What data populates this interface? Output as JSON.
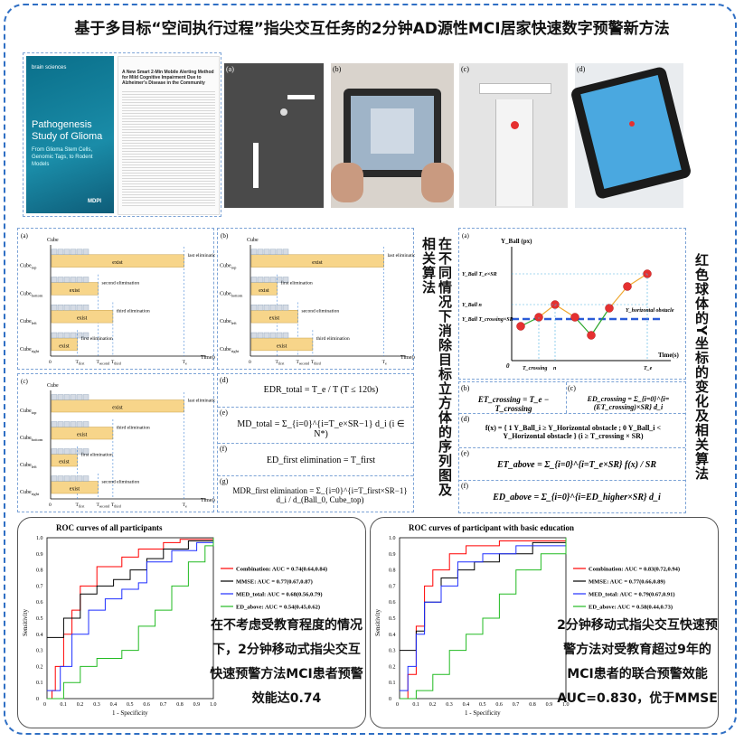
{
  "title": "基于多目标“空间执行过程”指尖交互任务的2分钟AD源性MCI居家快速数字预警新方法",
  "cover": {
    "journal": "brain sciences",
    "book_title": "Pathogenesis Study of Glioma",
    "book_subtitle": "From Glioma Stem Cells, Genomic Tags, to Rodent Models",
    "publisher": "MDPI",
    "article_title": "A New Smart 2-Min Mobile Alerting Method for Mild Cognitive Impairment Due to Alzheimer's Disease in the Community"
  },
  "photo_labels": [
    "(a)",
    "(b)",
    "(c)",
    "(d)"
  ],
  "sequence_panels": [
    {
      "label": "(a)",
      "y_axis": "Cube",
      "x_axis": "Time(s)",
      "rows": [
        {
          "name": "Cube",
          "sub": "top",
          "bar": "exist",
          "event": "last elimination"
        },
        {
          "name": "Cube",
          "sub": "bottom",
          "bar": "exist",
          "event": "second elimination"
        },
        {
          "name": "Cube",
          "sub": "left",
          "bar": "exist",
          "event": "third elimination"
        },
        {
          "name": "Cube",
          "sub": "right",
          "bar": "exist",
          "event": "first elimination"
        }
      ],
      "ticks": [
        "0",
        "T",
        "T",
        "T",
        "T"
      ],
      "tick_subs": [
        "",
        "first",
        "second",
        "third",
        "e"
      ]
    },
    {
      "label": "(b)",
      "y_axis": "Cube",
      "x_axis": "Time(s)",
      "rows": [
        {
          "name": "Cube",
          "sub": "top",
          "bar": "exist",
          "event": "last elimination"
        },
        {
          "name": "Cube",
          "sub": "bottom",
          "bar": "exist",
          "event": "first elimination"
        },
        {
          "name": "Cube",
          "sub": "left",
          "bar": "exist",
          "event": "second elimination"
        },
        {
          "name": "Cube",
          "sub": "right",
          "bar": "exist",
          "event": "third elimination"
        }
      ],
      "ticks": [
        "0",
        "T",
        "T",
        "T",
        "T"
      ],
      "tick_subs": [
        "",
        "first",
        "second",
        "third",
        "e"
      ]
    },
    {
      "label": "(c)",
      "y_axis": "Cube",
      "x_axis": "Time(s)",
      "rows": [
        {
          "name": "Cube",
          "sub": "top",
          "bar": "exist",
          "event": "last elimination"
        },
        {
          "name": "Cube",
          "sub": "bottom",
          "bar": "exist",
          "event": "third elimination"
        },
        {
          "name": "Cube",
          "sub": "left",
          "bar": "exist",
          "event": "first elimination"
        },
        {
          "name": "Cube",
          "sub": "right",
          "bar": "exist",
          "event": "second elimination"
        }
      ],
      "ticks": [
        "0",
        "T",
        "T",
        "T",
        "T"
      ],
      "tick_subs": [
        "",
        "first",
        "second",
        "third",
        "e"
      ]
    }
  ],
  "formulas_left": [
    {
      "label": "(d)",
      "text": "EDR_total = T_e / T  (T ≤ 120s)"
    },
    {
      "label": "(e)",
      "text": "MD_total = Σ_{i=0}^{i=T_e×SR−1} d_i  (i ∈ N*)"
    },
    {
      "label": "(f)",
      "text": "ED_first elimination = T_first"
    },
    {
      "label": "(g)",
      "text": "MDR_first elimination = Σ_{i=0}^{i=T_first×SR−1} d_i / d_(Ball_0, Cube_top)"
    }
  ],
  "vertical_text_middle": "在不同情况下消除目标立方体的序列图及相关算法",
  "vertical_text_right": "红色球体的Y坐标的变化及相关算法",
  "ball_chart": {
    "label": "(a)",
    "y_axis": "Y_Ball (px)",
    "x_axis": "Time(s)",
    "origin": "0",
    "y_marks": [
      "Y_Ball T_e×SR",
      "Y_Ball n",
      "Y_Ball T_crossing×SR"
    ],
    "obstacle_label": "Y_horizontal obstacle",
    "x_marks": [
      "T_crossing",
      "n",
      "T_e"
    ]
  },
  "formulas_right": [
    {
      "label": "(b)",
      "text": "ET_crossing = T_e − T_crossing"
    },
    {
      "label": "(c)",
      "text": "ED_crossing = Σ_{i=0}^{i=(ET_crossing)×SR} d_i"
    },
    {
      "label": "(d)",
      "text": "f(x) = { 1  Y_Ball_i ≥ Y_Horizontal obstacle ; 0  Y_Ball_i < Y_Horizontal obstacle }  (i ≥ T_crossing × SR)"
    },
    {
      "label": "(e)",
      "text": "ET_above = Σ_{i=0}^{i=T_e×SR} f(x) / SR"
    },
    {
      "label": "(f)",
      "text": "ED_above = Σ_{i=0}^{i=ED_higher×SR} d_i"
    }
  ],
  "roc_all": {
    "title": "ROC curves of all participants",
    "xlabel": "1 - Specificity",
    "ylabel": "Sensitivity",
    "legend": [
      {
        "name": "Combination: AUC = 0.74(0.64,0.84)",
        "color": "#ff0000"
      },
      {
        "name": "MMSE: AUC = 0.77(0.67,0.87)",
        "color": "#000000"
      },
      {
        "name": "MED_total: AUC = 0.68(0.56,0.79)",
        "color": "#1f2fff"
      },
      {
        "name": "ED_above: AUC = 0.54(0.45,0.62)",
        "color": "#22bb22"
      }
    ],
    "note": "在不考虑受教育程度的情况下，2分钟移动式指尖交互快速预警方法MCI患者预警效能达0.74"
  },
  "roc_edu": {
    "title": "ROC curves of participant with basic education",
    "xlabel": "1 - Specificity",
    "ylabel": "Sensitivity",
    "legend": [
      {
        "name": "Combination: AUC = 0.83(0.72,0.94)",
        "color": "#ff0000"
      },
      {
        "name": "MMSE: AUC = 0.77(0.66,0.89)",
        "color": "#000000"
      },
      {
        "name": "MED_total: AUC = 0.79(0.67,0.91)",
        "color": "#1f2fff"
      },
      {
        "name": "ED_above: AUC = 0.58(0.44,0.73)",
        "color": "#22bb22"
      }
    ],
    "note": "2分钟移动式指尖交互快速预警方法对受教育超过9年的MCI患者的联合预警效能AUC=0.830，优于MMSE"
  },
  "roc_ticks_x": [
    "0",
    "0.1",
    "0.2",
    "0.3",
    "0.4",
    "0.5",
    "0.6",
    "0.7",
    "0.8",
    "0.9",
    "1.0"
  ],
  "roc_ticks_y": [
    "0",
    "0.1",
    "0.2",
    "0.3",
    "0.4",
    "0.5",
    "0.6",
    "0.7",
    "0.8",
    "0.9",
    "1.0"
  ]
}
